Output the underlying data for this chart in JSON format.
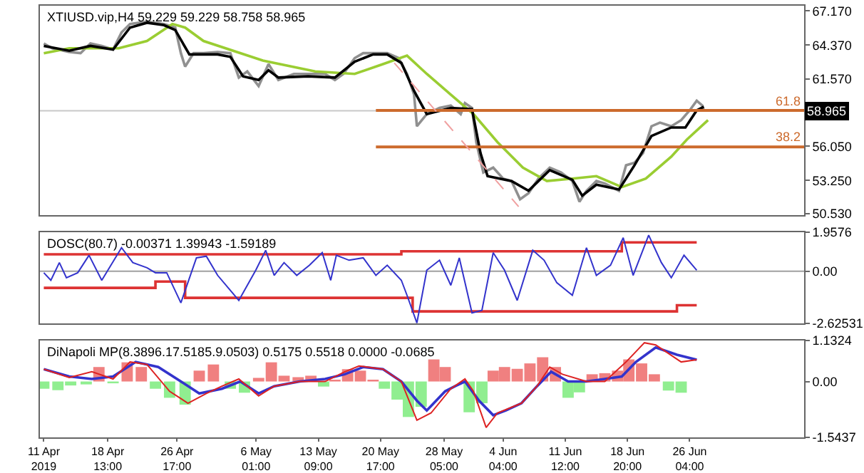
{
  "chart_data": [
    {
      "type": "line",
      "title": "XTIUSD.vip,H4 59.229 59.229 58.758 58.965",
      "xlim": [
        "2019-04-10T13:00",
        "2019-07-09T16:00"
      ],
      "ylim": [
        50.4,
        67.6
      ],
      "yticks": [
        {
          "value": 67.17,
          "label": "67.170"
        },
        {
          "value": 64.37,
          "label": "64.370"
        },
        {
          "value": 61.57,
          "label": "61.570"
        },
        {
          "value": 56.05,
          "label": "56.050"
        },
        {
          "value": 53.25,
          "label": "53.250"
        },
        {
          "value": 50.53,
          "label": "50.530"
        }
      ],
      "tick_labels": "y",
      "ref_lines": [
        {
          "axis": "y",
          "value": 58.965,
          "label": "58.965",
          "color": "#c8c8c8"
        }
      ],
      "series": [
        {
          "color": "#909090",
          "x": [
            "2019-04-11T00:00",
            "2019-04-12T00:00",
            "2019-04-14T00:00",
            "2019-04-15T08:00",
            "2019-04-16T12:00",
            "2019-04-17T20:00",
            "2019-04-19T04:00",
            "2019-04-20T04:00",
            "2019-04-21T04:00",
            "2019-04-23T04:00",
            "2019-04-25T04:00",
            "2019-04-26T12:00",
            "2019-04-27T04:00",
            "2019-04-27T16:00",
            "2019-04-28T16:00",
            "2019-04-29T20:00",
            "2019-05-01T12:00",
            "2019-05-03T00:00",
            "2019-05-04T00:00",
            "2019-05-05T00:00",
            "2019-05-06T08:00",
            "2019-05-07T12:00",
            "2019-05-08T16:00",
            "2019-05-10T12:00",
            "2019-05-12T04:00",
            "2019-05-14T04:00",
            "2019-05-15T08:00",
            "2019-05-16T08:00",
            "2019-05-17T16:00",
            "2019-05-18T16:00",
            "2019-05-19T20:00",
            "2019-05-21T12:00",
            "2019-05-22T20:00",
            "2019-05-23T20:00",
            "2019-05-24T16:00",
            "2019-05-25T00:00",
            "2019-05-26T04:00",
            "2019-05-27T16:00",
            "2019-05-29T00:00",
            "2019-05-30T04:00",
            "2019-05-30T16:00",
            "2019-05-31T12:00",
            "2019-06-01T00:00",
            "2019-06-01T20:00",
            "2019-06-03T00:00",
            "2019-06-04T04:00",
            "2019-06-05T04:00",
            "2019-06-06T04:00",
            "2019-06-07T04:00",
            "2019-06-08T08:00",
            "2019-06-09T16:00",
            "2019-06-11T00:00",
            "2019-06-12T08:00",
            "2019-06-13T04:00",
            "2019-06-14T00:00",
            "2019-06-15T04:00",
            "2019-06-16T04:00",
            "2019-06-17T20:00",
            "2019-06-18T16:00",
            "2019-06-19T16:00",
            "2019-06-20T16:00",
            "2019-06-21T16:00",
            "2019-06-22T16:00",
            "2019-06-24T00:00",
            "2019-06-25T04:00",
            "2019-06-26T04:00",
            "2019-06-27T00:00",
            "2019-06-27T16:00",
            "2019-06-27T20:00"
          ],
          "values": [
            64.5,
            64.1,
            63.8,
            63.7,
            64.5,
            64.3,
            64.0,
            65.4,
            66.1,
            66.3,
            66.1,
            65.8,
            63.7,
            62.6,
            63.7,
            63.7,
            63.8,
            63.7,
            61.7,
            62.2,
            61.0,
            62.8,
            61.5,
            62.0,
            62.0,
            62.0,
            61.5,
            62.0,
            63.3,
            63.7,
            63.7,
            63.7,
            63.3,
            62.0,
            60.3,
            57.7,
            58.7,
            59.2,
            59.4,
            58.7,
            59.6,
            59.2,
            56.4,
            53.9,
            54.3,
            53.4,
            53.2,
            51.7,
            52.2,
            53.4,
            54.3,
            53.9,
            53.2,
            51.5,
            52.4,
            53.2,
            53.0,
            52.4,
            54.5,
            54.7,
            55.5,
            57.7,
            58.0,
            57.7,
            58.2,
            59.0,
            59.8,
            59.4,
            59.0
          ]
        },
        {
          "color": "#9acd32",
          "x": [
            "2019-04-11T00:00",
            "2019-04-14T00:00",
            "2019-04-19T20:00",
            "2019-04-23T04:00",
            "2019-04-26T04:00",
            "2019-04-27T16:00",
            "2019-04-29T20:00",
            "2019-05-06T20:00",
            "2019-05-13T00:00",
            "2019-05-17T16:00",
            "2019-05-21T00:00",
            "2019-05-23T20:00",
            "2019-05-26T04:00",
            "2019-05-29T00:00",
            "2019-05-31T16:00",
            "2019-06-03T12:00",
            "2019-06-06T12:00",
            "2019-06-09T08:00",
            "2019-06-12T08:00",
            "2019-06-15T04:00",
            "2019-06-18T04:00",
            "2019-06-21T00:00",
            "2019-06-24T00:00",
            "2019-06-25T20:00",
            "2019-06-28T08:00"
          ],
          "values": [
            63.7,
            64.1,
            64.1,
            64.7,
            66.1,
            65.8,
            64.7,
            63.1,
            62.2,
            62.0,
            62.8,
            63.5,
            62.0,
            60.3,
            58.7,
            56.4,
            54.3,
            53.2,
            53.4,
            53.6,
            52.7,
            53.4,
            55.2,
            56.6,
            58.2
          ]
        },
        {
          "color": "#000000",
          "x": [
            "2019-04-11T00:00",
            "2019-04-14T00:00",
            "2019-04-16T12:00",
            "2019-04-19T04:00",
            "2019-04-21T04:00",
            "2019-04-23T04:00",
            "2019-04-25T04:00",
            "2019-04-26T12:00",
            "2019-04-28T04:00",
            "2019-05-01T12:00",
            "2019-05-03T00:00",
            "2019-05-04T12:00",
            "2019-05-06T08:00",
            "2019-05-07T12:00",
            "2019-05-08T16:00",
            "2019-05-12T04:00",
            "2019-05-15T08:00",
            "2019-05-17T16:00",
            "2019-05-19T20:00",
            "2019-05-21T12:00",
            "2019-05-23T04:00",
            "2019-05-24T16:00",
            "2019-05-26T04:00",
            "2019-05-29T00:00",
            "2019-05-31T12:00",
            "2019-06-01T12:00",
            "2019-06-02T08:00",
            "2019-06-05T04:00",
            "2019-06-07T04:00",
            "2019-06-08T08:00",
            "2019-06-09T16:00",
            "2019-06-12T08:00",
            "2019-06-13T12:00",
            "2019-06-15T04:00",
            "2019-06-17T20:00",
            "2019-06-19T16:00",
            "2019-06-21T16:00",
            "2019-06-24T00:00",
            "2019-06-25T16:00",
            "2019-06-27T00:00",
            "2019-06-27T20:00"
          ],
          "values": [
            64.3,
            63.9,
            64.3,
            64.0,
            65.8,
            66.2,
            66.0,
            65.6,
            63.6,
            63.6,
            63.4,
            61.8,
            61.5,
            62.3,
            61.7,
            61.8,
            61.7,
            63.0,
            63.6,
            63.6,
            62.9,
            60.6,
            58.7,
            59.2,
            59.1,
            55.5,
            53.6,
            53.2,
            52.4,
            53.2,
            54.1,
            53.3,
            52.0,
            52.9,
            52.5,
            54.5,
            56.9,
            57.6,
            57.6,
            59.0,
            59.3
          ]
        },
        {
          "name": "61.8",
          "color": "#cc6a2c",
          "x": [
            "2019-05-20T04:00",
            "2019-07-09T16:00"
          ],
          "values": [
            59.0,
            59.0
          ]
        },
        {
          "name": "38.2",
          "color": "#cc6a2c",
          "x": [
            "2019-05-20T04:00",
            "2019-07-09T16:00"
          ],
          "values": [
            56.0,
            56.0
          ]
        },
        {
          "color": "#f0a0a0",
          "line_style": "dashed",
          "x": [
            "2019-05-22T08:00",
            "2019-06-06T00:00"
          ],
          "values": [
            62.9,
            51.1
          ]
        }
      ]
    },
    {
      "type": "line",
      "title": "DOSC(80.7) -0.00371 1.39943 -1.59189",
      "xlim": [
        "2019-04-10T13:00",
        "2019-07-09T16:00"
      ],
      "ylim": [
        -2.62531,
        1.9576
      ],
      "yticks": [
        1.9576,
        {
          "value": 0,
          "label": "0.00"
        },
        -2.62531
      ],
      "tick_labels": "y",
      "ref_lines": [
        {
          "axis": "y",
          "value": 0,
          "color": "#a0a0a0"
        }
      ],
      "series": [
        {
          "type": "step",
          "color": "#dd3333",
          "x": [
            "2019-04-11T00:00",
            "2019-05-23T04:00",
            "2019-06-18T04:00",
            "2019-06-27T00:00"
          ],
          "values": [
            0.85,
            1.0,
            1.45,
            1.45
          ]
        },
        {
          "type": "step",
          "color": "#dd3333",
          "x": [
            "2019-04-11T00:00",
            "2019-04-24T04:00",
            "2019-04-27T16:00",
            "2019-05-24T12:00",
            "2019-06-24T16:00",
            "2019-06-27T00:00"
          ],
          "values": [
            -0.84,
            -0.52,
            -1.34,
            -2.02,
            -1.71,
            -1.71
          ]
        },
        {
          "color": "#3333cc",
          "x": [
            "2019-04-11T00:00",
            "2019-04-11T20:00",
            "2019-04-12T20:00",
            "2019-04-13T16:00",
            "2019-04-15T00:00",
            "2019-04-16T08:00",
            "2019-04-17T20:00",
            "2019-04-20T04:00",
            "2019-04-21T12:00",
            "2019-04-23T04:00",
            "2019-04-24T04:00",
            "2019-04-25T12:00",
            "2019-04-27T04:00",
            "2019-04-29T00:00",
            "2019-04-30T04:00",
            "2019-05-01T12:00",
            "2019-05-04T00:00",
            "2019-05-06T00:00",
            "2019-05-07T04:00",
            "2019-05-08T04:00",
            "2019-05-09T08:00",
            "2019-05-10T20:00",
            "2019-05-12T08:00",
            "2019-05-13T20:00",
            "2019-05-14T20:00",
            "2019-05-15T12:00",
            "2019-05-17T00:00",
            "2019-05-18T16:00",
            "2019-05-20T04:00",
            "2019-05-21T12:00",
            "2019-05-23T04:00",
            "2019-05-23T20:00",
            "2019-05-25T00:00",
            "2019-05-26T04:00",
            "2019-05-27T16:00",
            "2019-05-29T00:00",
            "2019-05-30T00:00",
            "2019-05-31T12:00",
            "2019-06-01T16:00",
            "2019-06-03T00:00",
            "2019-06-04T08:00",
            "2019-06-05T20:00",
            "2019-06-07T16:00",
            "2019-06-09T00:00",
            "2019-06-10T12:00",
            "2019-06-12T08:00",
            "2019-06-14T00:00",
            "2019-06-15T04:00",
            "2019-06-16T20:00",
            "2019-06-18T08:00",
            "2019-06-19T12:00",
            "2019-06-21T08:00",
            "2019-06-22T20:00",
            "2019-06-24T00:00",
            "2019-06-25T12:00",
            "2019-06-27T00:00"
          ],
          "values": [
            -0.08,
            -0.46,
            0.43,
            -0.33,
            -0.08,
            0.8,
            -0.46,
            1.18,
            0.43,
            0.17,
            -0.08,
            -0.08,
            -1.59,
            0.67,
            0.75,
            -0.21,
            -1.47,
            0.05,
            1.05,
            -0.21,
            0.43,
            -0.21,
            0.3,
            0.93,
            -0.46,
            0.8,
            0.55,
            0.67,
            -0.21,
            0.3,
            -0.46,
            -1.21,
            -2.6,
            0.05,
            0.55,
            -0.71,
            0.67,
            -2.1,
            -1.97,
            0.93,
            0.05,
            -1.47,
            1.05,
            0.55,
            -0.58,
            -1.21,
            1.18,
            -0.21,
            0.3,
            1.68,
            -0.21,
            1.81,
            0.43,
            -0.33,
            0.8,
            0.05
          ]
        }
      ]
    },
    {
      "type": "bar",
      "title": "DiNapoli MP(8.3896.17.5185.9.0503) 0.5175 0.5518 0.0000 -0.0685",
      "xlim": [
        "2019-04-10T13:00",
        "2019-07-09T16:00"
      ],
      "ylim": [
        -1.5437,
        1.1324
      ],
      "yticks": [
        1.1324,
        {
          "value": 0,
          "label": "0.00"
        },
        -1.5437
      ],
      "xticks": [
        {
          "value": "2019-04-11T00:00",
          "label": "11 Apr 2019"
        },
        {
          "value": "2019-04-18T13:00",
          "label": "18 Apr 13:00"
        },
        {
          "value": "2019-04-26T17:00",
          "label": "26 Apr 17:00"
        },
        {
          "value": "2019-05-06T01:00",
          "label": "6 May 01:00"
        },
        {
          "value": "2019-05-13T09:00",
          "label": "13 May 09:00"
        },
        {
          "value": "2019-05-20T17:00",
          "label": "20 May 17:00"
        },
        {
          "value": "2019-05-28T05:00",
          "label": "28 May 05:00"
        },
        {
          "value": "2019-06-04T04:00",
          "label": "4 Jun 04:00"
        },
        {
          "value": "2019-06-11T12:00",
          "label": "11 Jun 12:00"
        },
        {
          "value": "2019-06-18T20:00",
          "label": "18 Jun 20:00"
        },
        {
          "value": "2019-06-26T04:00",
          "label": "26 Jun 04:00"
        }
      ],
      "series": [
        {
          "x": [
            "2019-04-11T00:00",
            "2019-04-12T16:00",
            "2019-04-14T04:00",
            "2019-04-16T00:00",
            "2019-04-17T12:00",
            "2019-04-19T04:00",
            "2019-04-20T20:00",
            "2019-04-22T12:00",
            "2019-04-24T04:00",
            "2019-04-25T20:00",
            "2019-04-27T16:00",
            "2019-04-29T08:00",
            "2019-05-01T00:00",
            "2019-05-03T00:00",
            "2019-05-04T16:00",
            "2019-05-06T08:00",
            "2019-05-07T20:00",
            "2019-05-09T08:00",
            "2019-05-11T00:00",
            "2019-05-12T12:00",
            "2019-05-14T00:00",
            "2019-05-15T08:00",
            "2019-05-16T20:00",
            "2019-05-18T08:00",
            "2019-05-19T20:00",
            "2019-05-21T04:00",
            "2019-05-22T16:00",
            "2019-05-24T00:00",
            "2019-05-25T12:00",
            "2019-05-27T00:00",
            "2019-05-28T08:00",
            "2019-05-29T16:00",
            "2019-05-31T04:00",
            "2019-06-01T16:00",
            "2019-06-03T00:00",
            "2019-06-04T08:00",
            "2019-06-05T20:00",
            "2019-06-07T08:00",
            "2019-06-08T20:00",
            "2019-06-10T08:00",
            "2019-06-11T20:00",
            "2019-06-13T04:00",
            "2019-06-14T16:00",
            "2019-06-16T04:00",
            "2019-06-17T16:00",
            "2019-06-19T00:00",
            "2019-06-20T12:00",
            "2019-06-22T00:00",
            "2019-06-23T16:00",
            "2019-06-25T04:00"
          ],
          "values": [
            -0.2,
            -0.24,
            -0.11,
            -0.08,
            0.4,
            -0.05,
            0.53,
            0.4,
            -0.2,
            -0.45,
            -0.64,
            0.3,
            0.47,
            -0.2,
            -0.31,
            0.1,
            0.53,
            0.16,
            0.12,
            0.16,
            -0.14,
            0.05,
            0.34,
            0.3,
            0.05,
            -0.2,
            -0.5,
            -0.98,
            -0.7,
            0.61,
            0.4,
            null,
            -0.85,
            -0.6,
            0.3,
            0.4,
            0.35,
            0.5,
            0.67,
            0.4,
            -0.45,
            -0.3,
            0.2,
            0.23,
            0.3,
            0.61,
            0.5,
            0.2,
            -0.25,
            -0.31
          ],
          "colors": [
            "#90ee90",
            "#90ee90",
            "#90ee90",
            "#90ee90",
            "#f08080",
            "#90ee90",
            "#f08080",
            "#f08080",
            "#90ee90",
            "#90ee90",
            "#90ee90",
            "#f08080",
            "#f08080",
            "#90ee90",
            "#90ee90",
            "#f08080",
            "#f08080",
            "#f08080",
            "#f08080",
            "#f08080",
            "#90ee90",
            "#f08080",
            "#f08080",
            "#f08080",
            "#f08080",
            "#90ee90",
            "#90ee90",
            "#90ee90",
            "#90ee90",
            "#f08080",
            "#f08080",
            "#f08080",
            "#90ee90",
            "#90ee90",
            "#f08080",
            "#f08080",
            "#f08080",
            "#f08080",
            "#f08080",
            "#f08080",
            "#90ee90",
            "#90ee90",
            "#f08080",
            "#f08080",
            "#f08080",
            "#f08080",
            "#f08080",
            "#f08080",
            "#90ee90",
            "#90ee90"
          ]
        },
        {
          "type": "line",
          "color": "#3333cc",
          "x": [
            "2019-04-11T00:00",
            "2019-04-14T00:00",
            "2019-04-16T16:00",
            "2019-04-19T04:00",
            "2019-04-21T20:00",
            "2019-04-24T12:00",
            "2019-04-27T04:00",
            "2019-04-29T08:00",
            "2019-05-02T00:00",
            "2019-05-04T04:00",
            "2019-05-06T08:00",
            "2019-05-08T04:00",
            "2019-05-11T04:00",
            "2019-05-14T04:00",
            "2019-05-16T12:00",
            "2019-05-18T16:00",
            "2019-05-21T00:00",
            "2019-05-23T04:00",
            "2019-05-25T00:00",
            "2019-05-26T04:00",
            "2019-05-28T08:00",
            "2019-05-29T12:00",
            "2019-05-30T16:00",
            "2019-06-01T08:00",
            "2019-06-03T00:00",
            "2019-06-04T12:00",
            "2019-06-06T08:00",
            "2019-06-08T04:00",
            "2019-06-09T20:00",
            "2019-06-11T20:00",
            "2019-06-14T00:00",
            "2019-06-16T04:00",
            "2019-06-18T04:00",
            "2019-06-19T20:00",
            "2019-06-22T04:00",
            "2019-06-24T16:00",
            "2019-06-27T00:00"
          ],
          "values": [
            0.34,
            0.14,
            0.07,
            0.14,
            0.54,
            0.4,
            0.0,
            -0.33,
            -0.2,
            0.0,
            -0.33,
            -0.13,
            0.0,
            0.07,
            0.2,
            0.4,
            0.34,
            0.0,
            -0.53,
            -0.8,
            -0.27,
            -0.13,
            0.0,
            -0.53,
            -0.93,
            -0.8,
            -0.6,
            -0.13,
            0.27,
            0.0,
            0.0,
            0.07,
            0.14,
            0.54,
            0.94,
            0.74,
            0.6
          ]
        },
        {
          "type": "line",
          "color": "#dd2222",
          "x": [
            "2019-04-11T00:00",
            "2019-04-14T00:00",
            "2019-04-16T16:00",
            "2019-04-19T04:00",
            "2019-04-21T04:00",
            "2019-04-23T04:00",
            "2019-04-25T20:00",
            "2019-04-28T00:00",
            "2019-04-30T04:00",
            "2019-05-02T00:00",
            "2019-05-04T00:00",
            "2019-05-06T08:00",
            "2019-05-08T04:00",
            "2019-05-11T04:00",
            "2019-05-14T04:00",
            "2019-05-16T12:00",
            "2019-05-18T04:00",
            "2019-05-21T00:00",
            "2019-05-23T04:00",
            "2019-05-25T00:00",
            "2019-05-26T16:00",
            "2019-05-29T00:00",
            "2019-05-30T16:00",
            "2019-05-31T16:00",
            "2019-06-02T04:00",
            "2019-06-03T12:00",
            "2019-06-06T08:00",
            "2019-06-08T04:00",
            "2019-06-09T16:00",
            "2019-06-11T04:00",
            "2019-06-14T00:00",
            "2019-06-16T04:00",
            "2019-06-18T16:00",
            "2019-06-20T20:00",
            "2019-06-22T04:00",
            "2019-06-25T04:00",
            "2019-06-27T00:00"
          ],
          "values": [
            0.34,
            0.11,
            0.27,
            0.07,
            0.54,
            0.47,
            -0.27,
            -0.6,
            -0.33,
            -0.13,
            0.07,
            -0.4,
            -0.13,
            0.0,
            0.0,
            0.27,
            0.43,
            0.34,
            0.0,
            -1.07,
            -0.87,
            -0.2,
            0.07,
            -0.27,
            -1.27,
            -0.87,
            -0.6,
            -0.13,
            0.4,
            0.2,
            0.0,
            0.0,
            0.54,
            1.07,
            1.01,
            0.54,
            0.6
          ]
        }
      ]
    }
  ]
}
